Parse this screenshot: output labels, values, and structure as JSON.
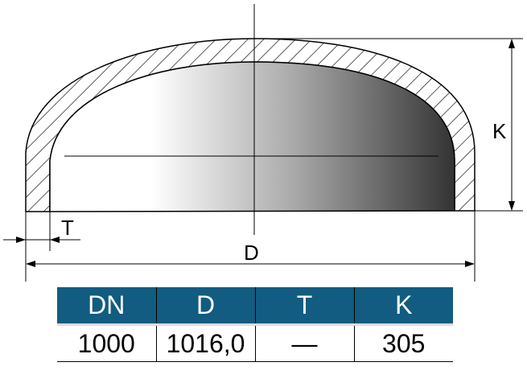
{
  "drawing": {
    "labels": {
      "K": "K",
      "T": "T",
      "D": "D"
    }
  },
  "table": {
    "headers": [
      "DN",
      "D",
      "T",
      "K"
    ],
    "rows": [
      [
        "1000",
        "1016,0",
        "—",
        "305"
      ]
    ],
    "header_color": "#115c80"
  }
}
